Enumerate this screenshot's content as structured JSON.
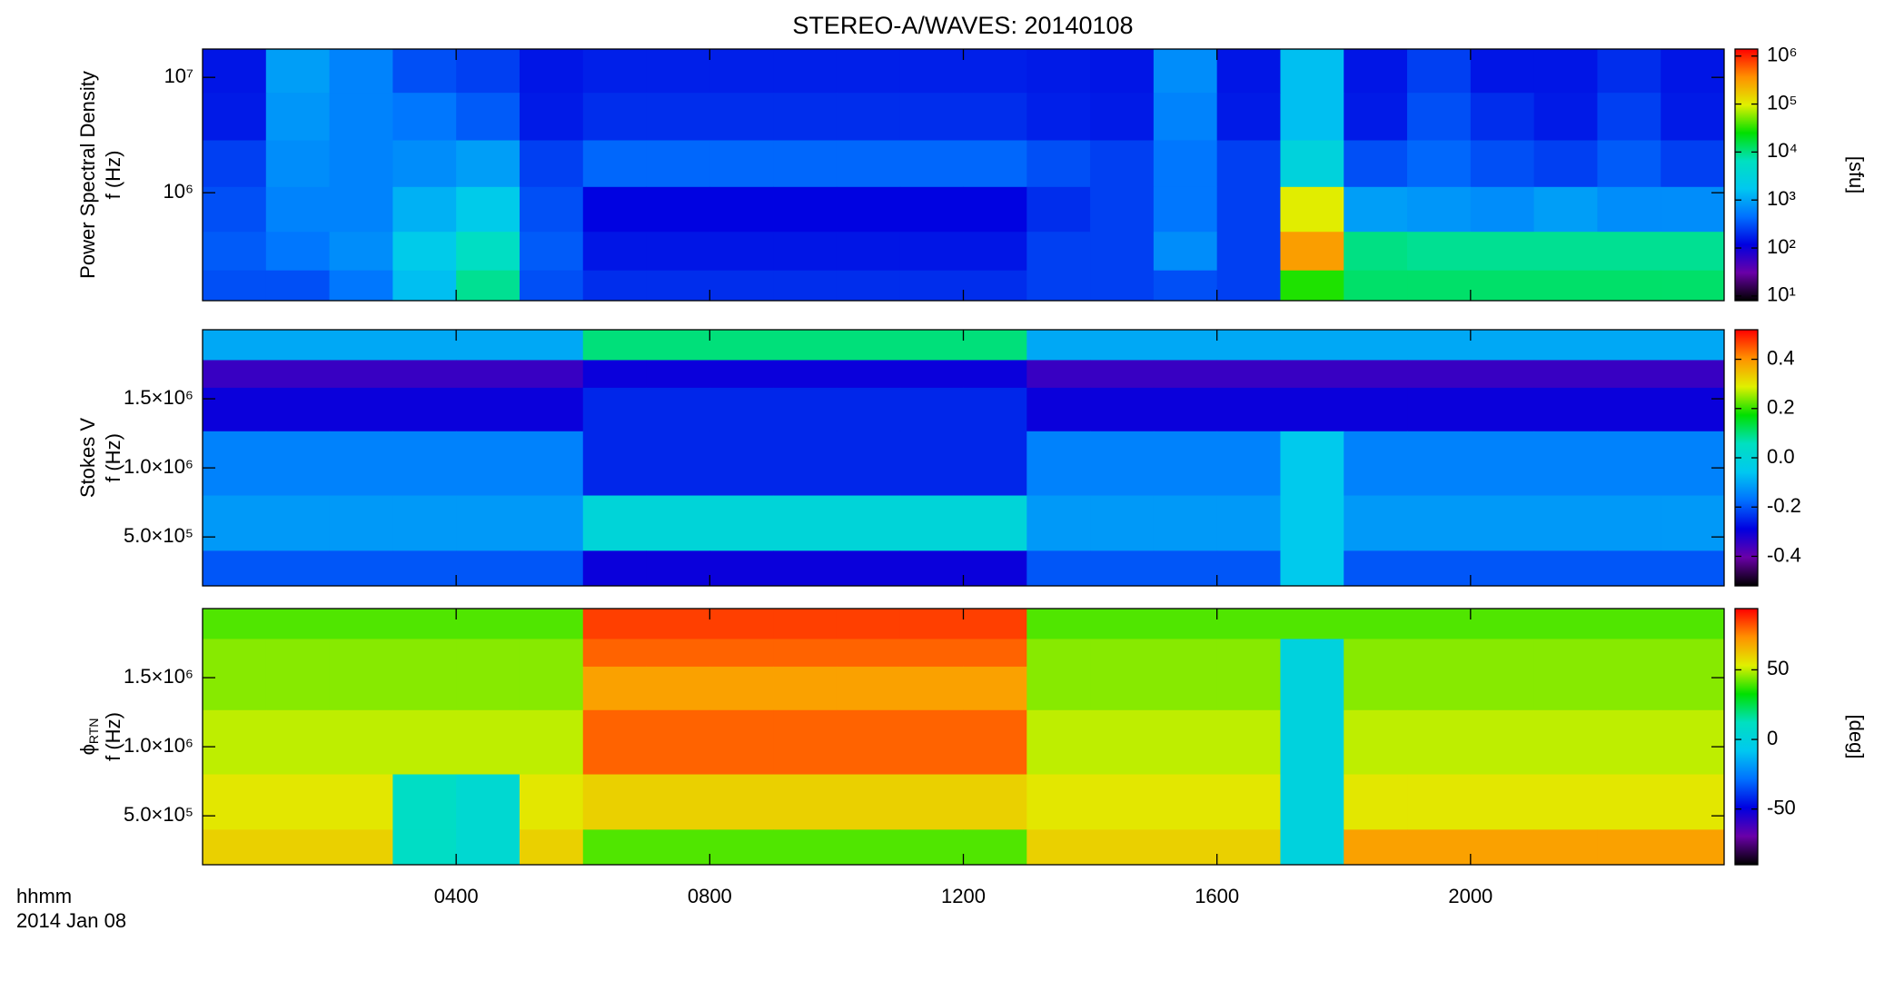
{
  "title": "STEREO-A/WAVES: 20140108",
  "x_label": "hhmm",
  "date_label": "2014 Jan 08",
  "xlim": [
    0,
    24
  ],
  "xticks": [
    {
      "value": 4,
      "label": "0400"
    },
    {
      "value": 8,
      "label": "0800"
    },
    {
      "value": 12,
      "label": "1200"
    },
    {
      "value": 16,
      "label": "1600"
    },
    {
      "value": 20,
      "label": "2000"
    }
  ],
  "x": [
    0.5,
    1.5,
    2.5,
    3.5,
    4.5,
    5.5,
    6.5,
    7.5,
    8.5,
    9.5,
    10.5,
    11.5,
    12.5,
    13.5,
    14.5,
    15.5,
    16.5,
    17.5,
    18.5,
    19.5,
    20.5,
    21.5,
    22.5,
    23.5
  ],
  "colormap": [
    "#000000",
    "#6a00a8",
    "#0000e0",
    "#0070ff",
    "#00c8f0",
    "#00e0c0",
    "#00e000",
    "#e0f000",
    "#ff9000",
    "#ff0000"
  ],
  "chart_data": [
    {
      "type": "heatmap",
      "ylabel": "Power Spectral Density",
      "ylabel2": "f (Hz)",
      "ylog": true,
      "ylim": [
        116000,
        17600000
      ],
      "yticks": [
        {
          "value": 1000000,
          "label": "10⁶"
        },
        {
          "value": 10000000,
          "label": "10⁷"
        }
      ],
      "y": [
        12000000,
        4500000,
        1800000,
        700000,
        300000,
        150000
      ],
      "z": [
        [
          150,
          900,
          600,
          300,
          250,
          150,
          170,
          170,
          170,
          170,
          170,
          170,
          170,
          160,
          150,
          700,
          150,
          1500,
          150,
          250,
          150,
          150,
          200,
          150
        ],
        [
          160,
          800,
          600,
          500,
          350,
          160,
          200,
          200,
          200,
          200,
          200,
          200,
          200,
          170,
          160,
          600,
          160,
          1500,
          160,
          300,
          200,
          160,
          250,
          160
        ],
        [
          250,
          700,
          600,
          700,
          900,
          250,
          400,
          400,
          400,
          400,
          400,
          400,
          400,
          300,
          250,
          500,
          250,
          3000,
          300,
          400,
          300,
          250,
          350,
          250
        ],
        [
          300,
          600,
          600,
          1200,
          2000,
          300,
          120,
          120,
          120,
          120,
          120,
          120,
          120,
          200,
          250,
          500,
          250,
          100000,
          900,
          800,
          700,
          900,
          700,
          700
        ],
        [
          350,
          500,
          700,
          2000,
          6000,
          350,
          150,
          150,
          150,
          150,
          150,
          150,
          150,
          250,
          250,
          700,
          250,
          300000,
          10000,
          9000,
          9000,
          9000,
          9000,
          9000
        ],
        [
          300,
          300,
          500,
          1500,
          9000,
          300,
          200,
          200,
          200,
          200,
          200,
          200,
          200,
          250,
          250,
          300,
          250,
          30000,
          12000,
          12000,
          12000,
          12000,
          12000,
          12000
        ]
      ],
      "clog": true,
      "clim": [
        8,
        1400000
      ],
      "cticks": [
        {
          "value": 10,
          "label": "10¹"
        },
        {
          "value": 100,
          "label": "10²"
        },
        {
          "value": 1000,
          "label": "10³"
        },
        {
          "value": 10000,
          "label": "10⁴"
        },
        {
          "value": 100000,
          "label": "10⁵"
        },
        {
          "value": 1000000,
          "label": "10⁶"
        }
      ],
      "clabel": "[sfu]"
    },
    {
      "type": "heatmap",
      "ylabel": "Stokes V",
      "ylabel2": "f (Hz)",
      "ylog": false,
      "ylim": [
        146000,
        2000000
      ],
      "yticks": [
        {
          "value": 500000,
          "label": "5.0×10⁵"
        },
        {
          "value": 1000000,
          "label": "1.0×10⁶"
        },
        {
          "value": 1500000,
          "label": "1.5×10⁶"
        }
      ],
      "y": [
        1880000,
        1680000,
        1480000,
        1050000,
        550000,
        250000
      ],
      "z": [
        [
          -0.1,
          -0.1,
          -0.1,
          -0.1,
          -0.1,
          -0.1,
          0.1,
          0.1,
          0.1,
          0.1,
          0.1,
          0.1,
          0.1,
          -0.1,
          -0.1,
          -0.1,
          -0.1,
          -0.1,
          -0.1,
          -0.1,
          -0.1,
          -0.1,
          -0.1,
          -0.1
        ],
        [
          -0.35,
          -0.35,
          -0.35,
          -0.35,
          -0.35,
          -0.35,
          -0.3,
          -0.3,
          -0.3,
          -0.3,
          -0.3,
          -0.3,
          -0.3,
          -0.35,
          -0.35,
          -0.35,
          -0.35,
          -0.35,
          -0.35,
          -0.35,
          -0.35,
          -0.35,
          -0.35,
          -0.35
        ],
        [
          -0.3,
          -0.3,
          -0.3,
          -0.3,
          -0.3,
          -0.3,
          -0.25,
          -0.25,
          -0.25,
          -0.25,
          -0.25,
          -0.25,
          -0.25,
          -0.3,
          -0.3,
          -0.3,
          -0.3,
          -0.3,
          -0.3,
          -0.3,
          -0.3,
          -0.3,
          -0.3,
          -0.3
        ],
        [
          -0.15,
          -0.15,
          -0.15,
          -0.15,
          -0.15,
          -0.15,
          -0.25,
          -0.25,
          -0.25,
          -0.25,
          -0.25,
          -0.25,
          -0.25,
          -0.15,
          -0.15,
          -0.15,
          -0.15,
          -0.05,
          -0.15,
          -0.15,
          -0.15,
          -0.15,
          -0.15,
          -0.15
        ],
        [
          -0.12,
          -0.12,
          -0.12,
          -0.12,
          -0.12,
          -0.12,
          0,
          0,
          0,
          0,
          0,
          0,
          0,
          -0.12,
          -0.12,
          -0.12,
          -0.12,
          -0.05,
          -0.12,
          -0.12,
          -0.12,
          -0.12,
          -0.12,
          -0.12
        ],
        [
          -0.2,
          -0.2,
          -0.2,
          -0.2,
          -0.2,
          -0.2,
          -0.3,
          -0.3,
          -0.3,
          -0.3,
          -0.3,
          -0.3,
          -0.3,
          -0.2,
          -0.2,
          -0.2,
          -0.2,
          -0.05,
          -0.2,
          -0.2,
          -0.2,
          -0.2,
          -0.2,
          -0.2
        ]
      ],
      "clog": false,
      "clim": [
        -0.52,
        0.52
      ],
      "cticks": [
        -0.4,
        -0.2,
        {
          "value": 0,
          "label": "0.0"
        },
        0.2,
        0.4
      ]
    },
    {
      "type": "heatmap",
      "ylabel": "ϕ",
      "ylabel_sub": "RTN",
      "ylabel2": "f (Hz)",
      "ylog": false,
      "ylim": [
        146000,
        2000000
      ],
      "yticks": [
        {
          "value": 500000,
          "label": "5.0×10⁵"
        },
        {
          "value": 1000000,
          "label": "1.0×10⁶"
        },
        {
          "value": 1500000,
          "label": "1.5×10⁶"
        }
      ],
      "y": [
        1880000,
        1680000,
        1480000,
        1050000,
        550000,
        250000
      ],
      "z": [
        [
          40,
          40,
          40,
          40,
          40,
          40,
          85,
          85,
          85,
          85,
          85,
          85,
          85,
          40,
          40,
          40,
          40,
          40,
          40,
          40,
          40,
          40,
          40,
          40
        ],
        [
          45,
          45,
          45,
          45,
          45,
          45,
          80,
          80,
          80,
          80,
          80,
          80,
          80,
          45,
          45,
          45,
          45,
          0,
          45,
          45,
          45,
          45,
          45,
          45
        ],
        [
          45,
          45,
          45,
          45,
          45,
          45,
          70,
          70,
          70,
          70,
          70,
          70,
          70,
          45,
          45,
          45,
          45,
          0,
          45,
          45,
          45,
          45,
          45,
          45
        ],
        [
          50,
          50,
          50,
          50,
          50,
          50,
          80,
          80,
          80,
          80,
          80,
          80,
          80,
          50,
          50,
          50,
          50,
          0,
          50,
          50,
          50,
          50,
          50,
          50
        ],
        [
          55,
          55,
          55,
          10,
          5,
          55,
          60,
          60,
          60,
          60,
          60,
          60,
          60,
          55,
          55,
          55,
          55,
          0,
          55,
          55,
          55,
          55,
          55,
          55
        ],
        [
          60,
          60,
          60,
          10,
          5,
          60,
          40,
          40,
          40,
          40,
          40,
          40,
          40,
          60,
          60,
          60,
          60,
          0,
          70,
          70,
          70,
          70,
          70,
          70
        ]
      ],
      "clog": false,
      "clim": [
        -90,
        94
      ],
      "cticks": [
        -50,
        0,
        50
      ],
      "clabel": "[deg]"
    }
  ]
}
